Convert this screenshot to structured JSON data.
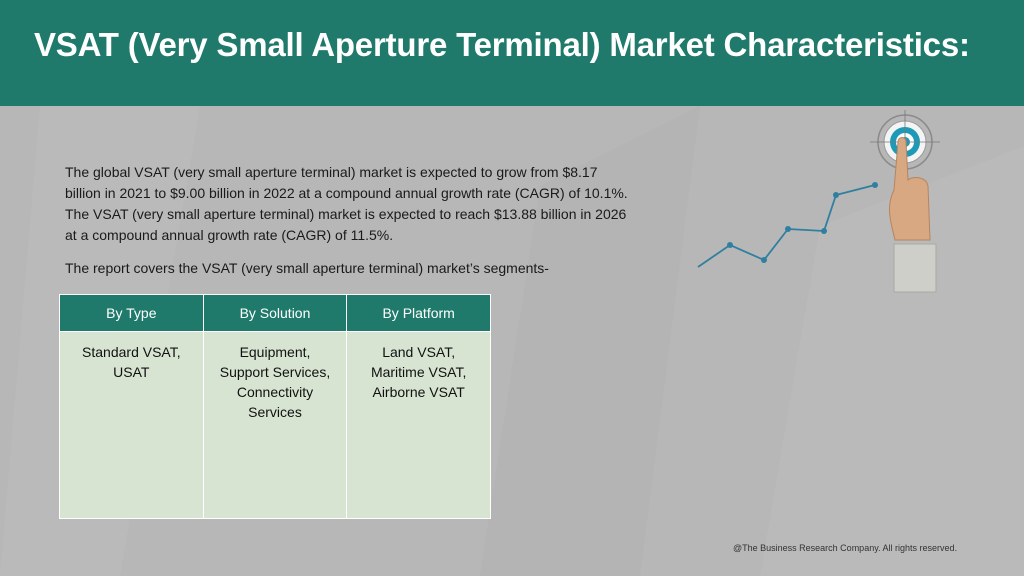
{
  "header": {
    "title": "VSAT (Very Small Aperture Terminal) Market Characteristics:"
  },
  "body": {
    "paragraph": "The global VSAT (very small aperture terminal) market is expected to grow from $8.17 billion in 2021 to $9.00 billion in 2022 at a compound annual growth rate (CAGR) of 10.1%. The VSAT (very small aperture terminal) market is expected to reach $13.88 billion in 2026 at a compound annual growth rate (CAGR) of 11.5%.",
    "segments_intro": "The report covers the VSAT (very small aperture terminal) market’s segments-"
  },
  "segments_table": {
    "headers": [
      "By Type",
      "By Solution",
      "By Platform"
    ],
    "cells": [
      [
        "Standard VSAT,",
        "USAT"
      ],
      [
        "Equipment,",
        "Support Services,",
        "Connectivity",
        "Services"
      ],
      [
        "Land VSAT,",
        "Maritime VSAT,",
        "Airborne VSAT"
      ]
    ]
  },
  "decoration": {
    "icon": "hand-touching-target-icon",
    "line_color": "#2f7fa0",
    "target_color": "#1e9ab7"
  },
  "footer": {
    "copyright": "@The Business Research Company. All rights reserved."
  },
  "colors": {
    "header_bg": "#1f7a6b",
    "page_bg": "#b7b7b7",
    "table_header_bg": "#1f7a6b",
    "table_cell_bg": "#d8e4d2"
  }
}
